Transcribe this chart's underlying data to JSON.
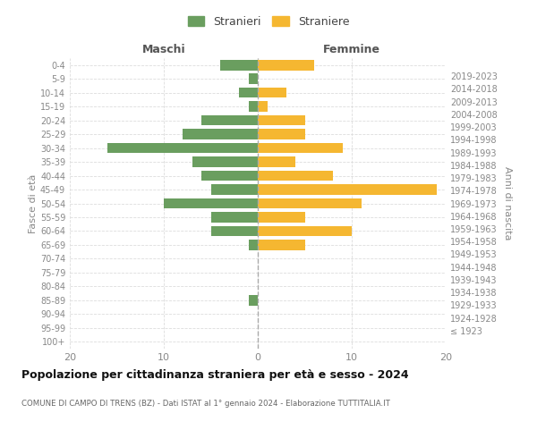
{
  "age_groups": [
    "100+",
    "95-99",
    "90-94",
    "85-89",
    "80-84",
    "75-79",
    "70-74",
    "65-69",
    "60-64",
    "55-59",
    "50-54",
    "45-49",
    "40-44",
    "35-39",
    "30-34",
    "25-29",
    "20-24",
    "15-19",
    "10-14",
    "5-9",
    "0-4"
  ],
  "birth_years": [
    "≤ 1923",
    "1924-1928",
    "1929-1933",
    "1934-1938",
    "1939-1943",
    "1944-1948",
    "1949-1953",
    "1954-1958",
    "1959-1963",
    "1964-1968",
    "1969-1973",
    "1974-1978",
    "1979-1983",
    "1984-1988",
    "1989-1993",
    "1994-1998",
    "1999-2003",
    "2004-2008",
    "2009-2013",
    "2014-2018",
    "2019-2023"
  ],
  "maschi": [
    0,
    0,
    0,
    1,
    0,
    0,
    0,
    1,
    5,
    5,
    10,
    5,
    6,
    7,
    16,
    8,
    6,
    1,
    2,
    1,
    4
  ],
  "femmine": [
    0,
    0,
    0,
    0,
    0,
    0,
    0,
    5,
    10,
    5,
    11,
    19,
    8,
    4,
    9,
    5,
    5,
    1,
    3,
    0,
    6
  ],
  "maschi_color": "#6a9e5f",
  "femmine_color": "#f5b731",
  "background_color": "#ffffff",
  "grid_color": "#dddddd",
  "axis_label_color": "#888888",
  "title": "Popolazione per cittadinanza straniera per età e sesso - 2024",
  "subtitle": "COMUNE DI CAMPO DI TRENS (BZ) - Dati ISTAT al 1° gennaio 2024 - Elaborazione TUTTITALIA.IT",
  "xlabel_left": "Maschi",
  "xlabel_right": "Femmine",
  "ylabel_left": "Fasce di età",
  "ylabel_right": "Anni di nascita",
  "legend_maschi": "Stranieri",
  "legend_femmine": "Straniere",
  "xlim": 20,
  "bar_height": 0.75
}
